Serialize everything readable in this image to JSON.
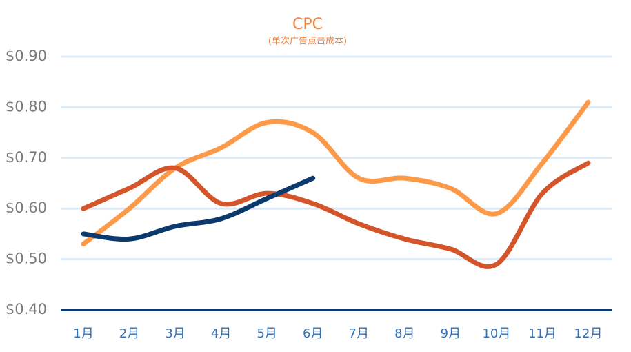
{
  "chart_data": {
    "type": "line",
    "title": "CPC",
    "subtitle": "(单次广告点击成本)",
    "categories": [
      "1月",
      "2月",
      "3月",
      "4月",
      "5月",
      "6月",
      "7月",
      "8月",
      "9月",
      "10月",
      "11月",
      "12月"
    ],
    "series": [
      {
        "color": "#fd9a4a",
        "values": [
          0.53,
          0.6,
          0.68,
          0.72,
          0.77,
          0.75,
          0.66,
          0.66,
          0.64,
          0.59,
          0.69,
          0.81
        ]
      },
      {
        "color": "#d4552a",
        "values": [
          0.6,
          0.64,
          0.68,
          0.61,
          0.63,
          0.61,
          0.57,
          0.54,
          0.52,
          0.49,
          0.63,
          0.69
        ]
      },
      {
        "color": "#0d3a6e",
        "values": [
          0.55,
          0.54,
          0.565,
          0.58,
          0.62,
          0.66,
          null,
          null,
          null,
          null,
          null,
          null
        ]
      }
    ],
    "ylim": [
      0.4,
      0.9
    ],
    "yticks": [
      {
        "value": 0.4,
        "label": "$0.40"
      },
      {
        "value": 0.5,
        "label": "$0.50"
      },
      {
        "value": 0.6,
        "label": "$0.60"
      },
      {
        "value": 0.7,
        "label": "$0.70"
      },
      {
        "value": 0.8,
        "label": "$0.80"
      },
      {
        "value": 0.9,
        "label": "$0.90"
      }
    ],
    "grid": true
  }
}
